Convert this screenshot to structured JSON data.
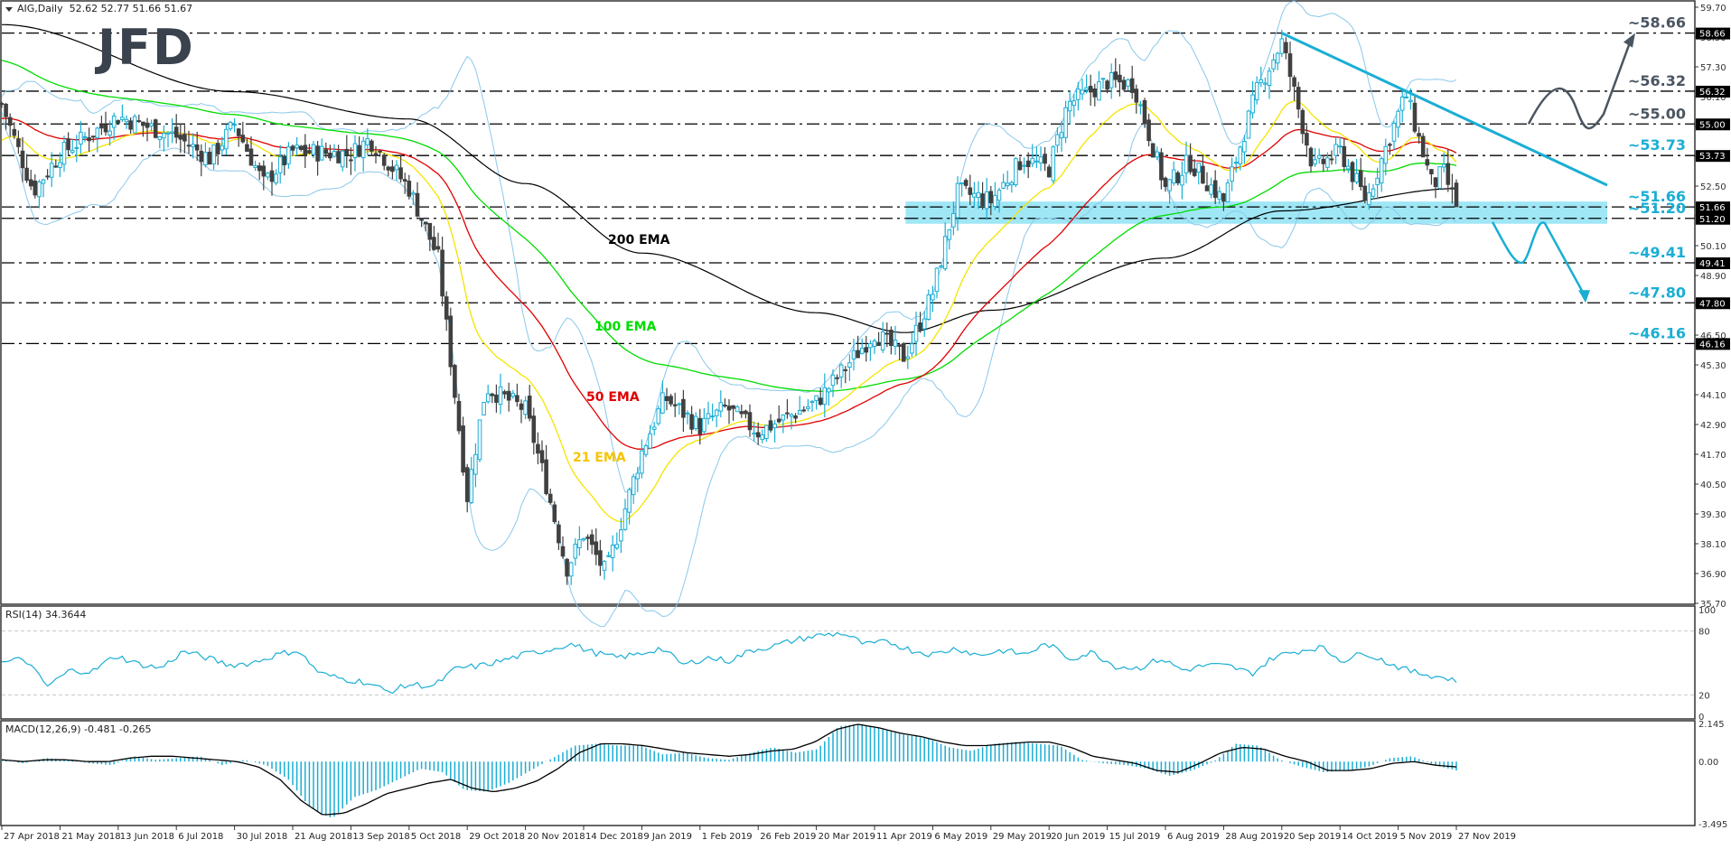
{
  "header": {
    "symbol": "AIG,Daily",
    "ohlc": "52.62 52.77 51.66 51.67"
  },
  "logo": {
    "text": "JFD"
  },
  "colors": {
    "bull": "#1aaed4",
    "bear": "#404040",
    "ema21": "#f5e400",
    "ema50": "#e00000",
    "ema100": "#00dd00",
    "ema200": "#000000",
    "bollinger": "#8ac8ea",
    "annot_cyan": "#1aaed4",
    "annot_grey": "#4a5561",
    "zone": "#8fe3f5",
    "rsi": "#1aaed4",
    "macd_hist": "#1aaed4",
    "macd_signal": "#000000",
    "axis": "#333333"
  },
  "rsi": {
    "label": "RSI(14) 34.3644"
  },
  "macd": {
    "label": "MACD(12,26,9) -0.481 -0.265"
  },
  "chart_data": {
    "type": "candlestick",
    "title": "AIG, Daily",
    "ylim": [
      35.7,
      59.7
    ],
    "price_axis_ticks": [
      "59.70",
      "58.50",
      "57.30",
      "56.10",
      "54.90",
      "53.70",
      "52.50",
      "51.30",
      "50.10",
      "48.90",
      "47.70",
      "46.50",
      "45.30",
      "44.10",
      "42.90",
      "41.70",
      "40.50",
      "39.30",
      "38.10",
      "36.90",
      "35.70"
    ],
    "x_tick_labels": [
      "27 Apr 2018",
      "21 May 2018",
      "13 Jun 2018",
      "6 Jul 2018",
      "30 Jul 2018",
      "21 Aug 2018",
      "13 Sep 2018",
      "5 Oct 2018",
      "29 Oct 2018",
      "20 Nov 2018",
      "14 Dec 2018",
      "9 Jan 2019",
      "1 Feb 2019",
      "26 Feb 2019",
      "20 Mar 2019",
      "11 Apr 2019",
      "6 May 2019",
      "29 May 2019",
      "20 Jun 2019",
      "15 Jul 2019",
      "6 Aug 2019",
      "28 Aug 2019",
      "20 Sep 2019",
      "14 Oct 2019",
      "5 Nov 2019",
      "27 Nov 2019"
    ],
    "last_ohlc": {
      "open": 52.62,
      "high": 52.77,
      "low": 51.66,
      "close": 51.67
    },
    "price_path_waypoints": [
      {
        "date": "27 Apr 2018",
        "close": 55.8
      },
      {
        "date": "10 May 2018",
        "close": 52.3
      },
      {
        "date": "21 May 2018",
        "close": 53.8
      },
      {
        "date": "13 Jun 2018",
        "close": 55.3
      },
      {
        "date": "6 Jul 2018",
        "close": 54.5
      },
      {
        "date": "20 Jul 2018",
        "close": 53.6
      },
      {
        "date": "30 Jul 2018",
        "close": 55.0
      },
      {
        "date": "10 Aug 2018",
        "close": 52.6
      },
      {
        "date": "21 Aug 2018",
        "close": 53.9
      },
      {
        "date": "13 Sep 2018",
        "close": 53.8
      },
      {
        "date": "20 Sep 2018",
        "close": 54.4
      },
      {
        "date": "5 Oct 2018",
        "close": 52.4
      },
      {
        "date": "17 Oct 2018",
        "close": 49.6
      },
      {
        "date": "24 Oct 2018",
        "close": 44.0
      },
      {
        "date": "29 Oct 2018",
        "close": 40.0
      },
      {
        "date": "5 Nov 2018",
        "close": 44.4
      },
      {
        "date": "20 Nov 2018",
        "close": 43.5
      },
      {
        "date": "28 Nov 2018",
        "close": 40.7
      },
      {
        "date": "7 Dec 2018",
        "close": 37.1
      },
      {
        "date": "14 Dec 2018",
        "close": 38.5
      },
      {
        "date": "24 Dec 2018",
        "close": 36.9
      },
      {
        "date": "9 Jan 2019",
        "close": 41.8
      },
      {
        "date": "18 Jan 2019",
        "close": 44.0
      },
      {
        "date": "1 Feb 2019",
        "close": 42.8
      },
      {
        "date": "12 Feb 2019",
        "close": 43.6
      },
      {
        "date": "26 Feb 2019",
        "close": 42.6
      },
      {
        "date": "20 Mar 2019",
        "close": 43.8
      },
      {
        "date": "11 Apr 2019",
        "close": 46.6
      },
      {
        "date": "24 Apr 2019",
        "close": 45.6
      },
      {
        "date": "6 May 2019",
        "close": 48.2
      },
      {
        "date": "16 May 2019",
        "close": 52.3
      },
      {
        "date": "29 May 2019",
        "close": 51.9
      },
      {
        "date": "10 Jun 2019",
        "close": 53.6
      },
      {
        "date": "20 Jun 2019",
        "close": 53.2
      },
      {
        "date": "28 Jun 2019",
        "close": 55.8
      },
      {
        "date": "15 Jul 2019",
        "close": 56.7
      },
      {
        "date": "25 Jul 2019",
        "close": 56.6
      },
      {
        "date": "6 Aug 2019",
        "close": 52.4
      },
      {
        "date": "15 Aug 2019",
        "close": 53.5
      },
      {
        "date": "28 Aug 2019",
        "close": 51.9
      },
      {
        "date": "10 Sep 2019",
        "close": 56.3
      },
      {
        "date": "20 Sep 2019",
        "close": 58.3
      },
      {
        "date": "3 Oct 2019",
        "close": 53.2
      },
      {
        "date": "14 Oct 2019",
        "close": 53.9
      },
      {
        "date": "24 Oct 2019",
        "close": 51.9
      },
      {
        "date": "5 Nov 2019",
        "close": 55.4
      },
      {
        "date": "8 Nov 2019",
        "close": 56.2
      },
      {
        "date": "18 Nov 2019",
        "close": 52.5
      },
      {
        "date": "22 Nov 2019",
        "close": 53.1
      },
      {
        "date": "27 Nov 2019",
        "close": 51.67
      }
    ],
    "indicators": [
      {
        "name": "21 EMA",
        "label": "21 EMA",
        "color": "#f5e400"
      },
      {
        "name": "50 EMA",
        "label": "50 EMA",
        "color": "#e00000"
      },
      {
        "name": "100 EMA",
        "label": "100 EMA",
        "color": "#00dd00"
      },
      {
        "name": "200 EMA",
        "label": "200 EMA",
        "color": "#000000"
      },
      {
        "name": "Bollinger Bands",
        "color": "#8ac8ea"
      }
    ],
    "ema200_waypoints": [
      {
        "date": "27 Apr 2018",
        "value": 59.0
      },
      {
        "date": "30 Jul 2018",
        "value": 56.3
      },
      {
        "date": "5 Oct 2018",
        "value": 55.2
      },
      {
        "date": "20 Nov 2018",
        "value": 52.6
      },
      {
        "date": "9 Jan 2019",
        "value": 49.8
      },
      {
        "date": "20 Mar 2019",
        "value": 47.4
      },
      {
        "date": "24 Apr 2019",
        "value": 46.6
      },
      {
        "date": "29 May 2019",
        "value": 47.5
      },
      {
        "date": "6 Aug 2019",
        "value": 49.6
      },
      {
        "date": "20 Sep 2019",
        "value": 51.5
      },
      {
        "date": "27 Nov 2019",
        "value": 52.4
      }
    ],
    "horizontal_levels": [
      {
        "value": 58.66,
        "label": "~58.66",
        "color": "#4a5561",
        "tag": "58.66"
      },
      {
        "value": 56.32,
        "label": "~56.32",
        "color": "#4a5561",
        "tag": "56.32"
      },
      {
        "value": 55.0,
        "label": "~55.00",
        "color": "#4a5561",
        "tag": "55.00"
      },
      {
        "value": 53.73,
        "label": "~53.73",
        "color": "#1aaed4",
        "tag": "53.73"
      },
      {
        "value": 51.66,
        "label": "~51.66",
        "color": "#1aaed4",
        "tag": "51.66"
      },
      {
        "value": 51.2,
        "label": "~51.20",
        "color": "#1aaed4",
        "tag": "51.20"
      },
      {
        "value": 49.41,
        "label": "~49.41",
        "color": "#1aaed4",
        "tag": "49.41"
      },
      {
        "value": 47.8,
        "label": "~47.80",
        "color": "#1aaed4",
        "tag": "47.80"
      },
      {
        "value": 46.16,
        "label": "~46.16",
        "color": "#1aaed4",
        "tag": "46.16"
      }
    ],
    "support_zone": {
      "from": 51.2,
      "to": 51.66,
      "start_date": "6 May 2019"
    },
    "downtrend_line": {
      "start": {
        "date": "20 Sep 2019",
        "value": 58.66
      },
      "through": {
        "date": "8 Nov 2019",
        "value": 56.32
      }
    },
    "scenario_arrows": [
      {
        "direction": "up",
        "path": [
          55.0,
          56.3,
          55.1,
          58.66
        ]
      },
      {
        "direction": "down",
        "path": [
          51.2,
          49.41,
          51.0,
          47.8
        ]
      }
    ],
    "rsi": {
      "label": "RSI(14)",
      "last": 34.3644,
      "ylim": [
        0,
        100
      ],
      "levels": [
        20,
        80
      ],
      "ticks": [
        "100",
        "80",
        "20",
        "0"
      ],
      "waypoints": [
        50,
        54,
        28,
        43,
        42,
        57,
        49,
        45,
        61,
        55,
        48,
        50,
        57,
        62,
        40,
        35,
        32,
        23,
        30,
        28,
        45,
        47,
        52,
        58,
        62,
        68,
        60,
        55,
        58,
        64,
        48,
        55,
        52,
        62,
        66,
        72,
        76,
        78,
        67,
        70,
        62,
        58,
        64,
        57,
        62,
        58,
        68,
        54,
        60,
        47,
        45,
        54,
        43,
        48,
        47,
        40,
        56,
        61,
        65,
        52,
        60,
        50,
        42,
        38,
        34
      ]
    },
    "macd": {
      "label": "MACD(12,26,9)",
      "main": -0.481,
      "signal": -0.265,
      "ylim": [
        -3.495,
        2.145
      ],
      "ticks": [
        "2.145",
        "0.00",
        "-3.495"
      ],
      "hist_waypoints": [
        0.1,
        -0.1,
        0.2,
        0.1,
        -0.1,
        -0.2,
        0.3,
        0.1,
        0.2,
        0.3,
        -0.2,
        0.1,
        -0.2,
        -1.0,
        -2.6,
        -3.2,
        -2.0,
        -1.6,
        -1.0,
        -0.4,
        -0.6,
        -1.6,
        -1.7,
        -1.2,
        -0.5,
        0.2,
        0.9,
        1.0,
        0.9,
        0.9,
        0.4,
        0.5,
        0.2,
        0.1,
        0.5,
        0.8,
        0.5,
        0.7,
        2.0,
        2.1,
        1.8,
        1.5,
        1.3,
        0.8,
        0.6,
        1.0,
        1.1,
        1.0,
        0.9,
        0.1,
        -0.1,
        -0.2,
        -0.4,
        -0.8,
        -0.5,
        0.0,
        1.0,
        0.9,
        0.1,
        -0.3,
        -0.6,
        -0.5,
        -0.3,
        0.2,
        0.3,
        -0.2,
        -0.5
      ],
      "signal_waypoints": [
        0.1,
        0.0,
        0.1,
        0.1,
        0.0,
        0.0,
        0.2,
        0.3,
        0.3,
        0.2,
        0.1,
        0.0,
        -0.3,
        -1.0,
        -2.2,
        -3.0,
        -2.9,
        -2.4,
        -1.8,
        -1.5,
        -1.2,
        -1.0,
        -1.5,
        -1.7,
        -1.5,
        -1.1,
        -0.4,
        0.5,
        1.0,
        1.0,
        0.9,
        0.7,
        0.5,
        0.4,
        0.3,
        0.4,
        0.6,
        0.7,
        1.1,
        1.8,
        2.1,
        1.9,
        1.6,
        1.4,
        1.1,
        0.9,
        0.9,
        1.0,
        1.1,
        1.1,
        0.8,
        0.3,
        0.1,
        -0.1,
        -0.5,
        -0.6,
        -0.1,
        0.5,
        0.8,
        0.7,
        0.3,
        0.0,
        -0.5,
        -0.5,
        -0.4,
        -0.1,
        0.0,
        -0.2,
        -0.3
      ]
    }
  }
}
